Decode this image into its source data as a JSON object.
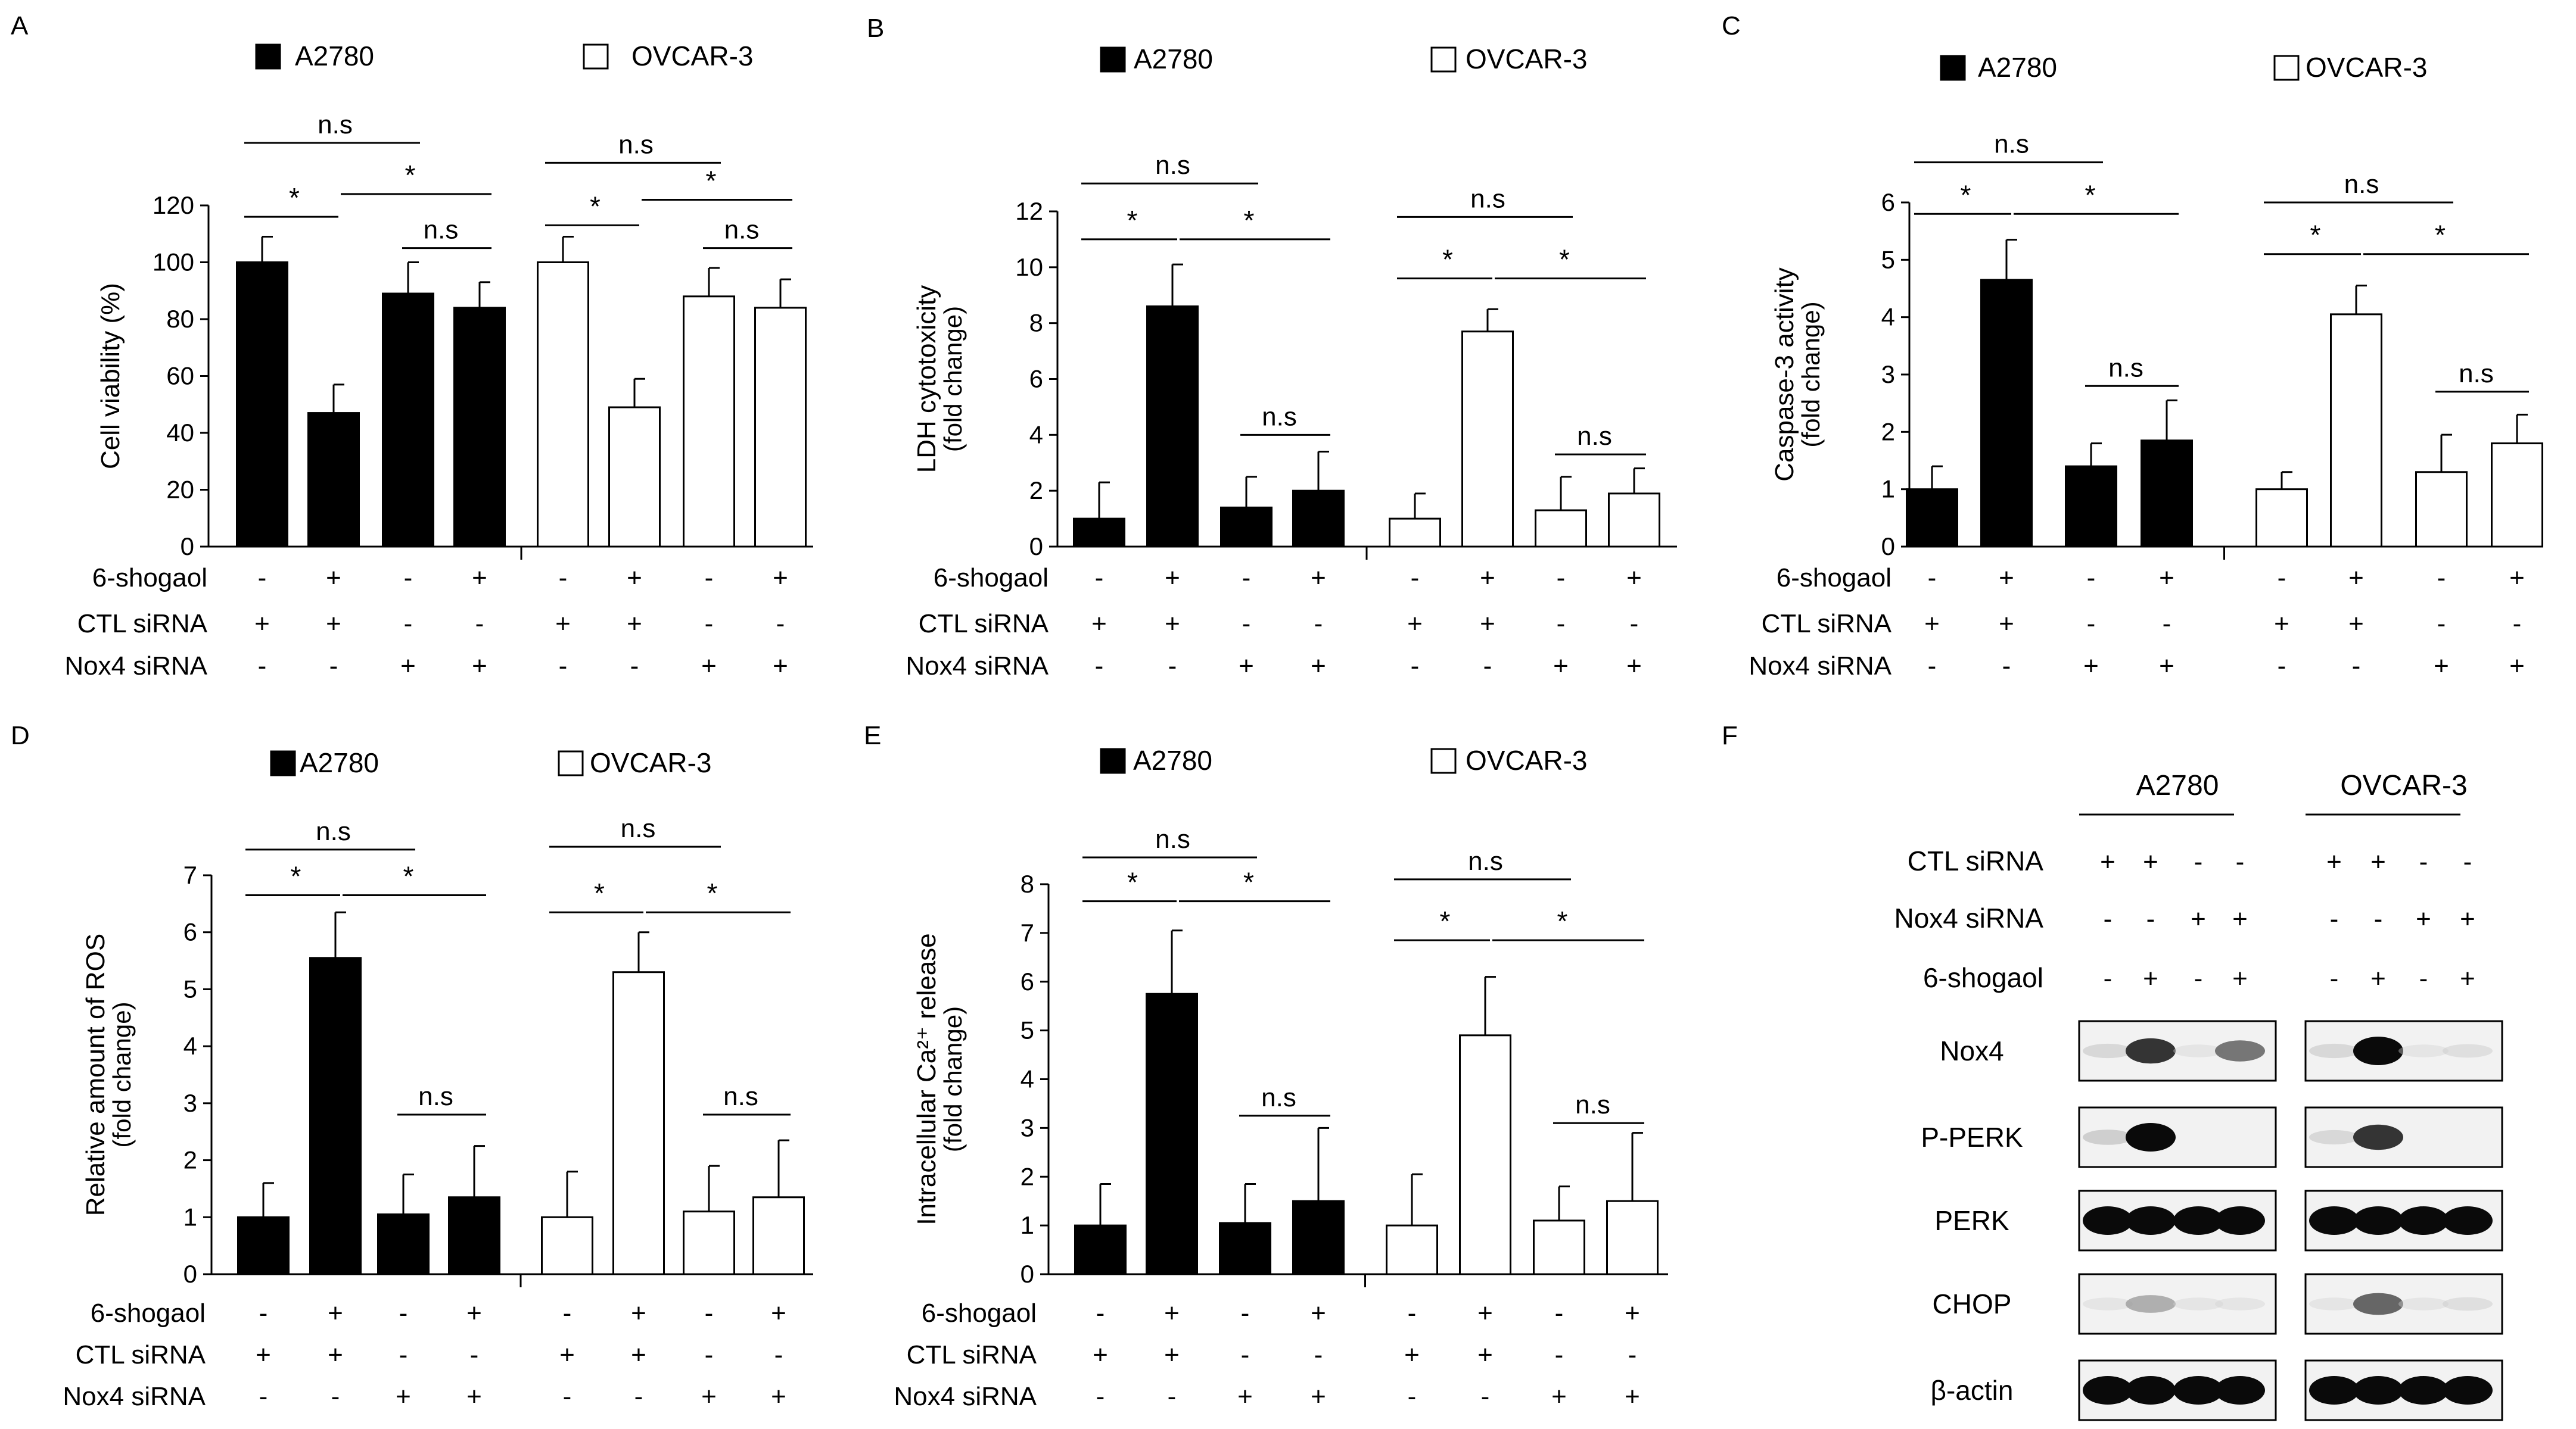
{
  "treatment_rows": [
    {
      "label": "6-shogaol",
      "signs": [
        "-",
        "+",
        "-",
        "+"
      ]
    },
    {
      "label": "CTL siRNA",
      "signs": [
        "+",
        "+",
        "-",
        "-"
      ]
    },
    {
      "label": "Nox4 siRNA",
      "signs": [
        "-",
        "-",
        "+",
        "+"
      ]
    }
  ],
  "legend": {
    "a2780": "A2780",
    "ovcar3": "OVCAR-3"
  },
  "colors": {
    "a2780_fill": "#000000",
    "ovcar3_fill": "#ffffff",
    "axis": "#000000"
  },
  "chart_data": [
    {
      "panel": "A",
      "type": "bar",
      "ylabel": "Cell viability (%)",
      "ylabel2": "",
      "ylim": [
        0,
        120
      ],
      "yticks": [
        0,
        20,
        40,
        60,
        80,
        100,
        120
      ],
      "series": [
        {
          "name": "A2780",
          "values": [
            100,
            47,
            89,
            84
          ],
          "errors": [
            9,
            10,
            11,
            9
          ]
        },
        {
          "name": "OVCAR-3",
          "values": [
            100,
            49,
            88,
            84
          ],
          "errors": [
            9,
            10,
            10,
            10
          ]
        }
      ],
      "annotations": [
        {
          "group": 0,
          "from": 0,
          "to": 2,
          "text": "n.s",
          "y": 142
        },
        {
          "group": 0,
          "from": 0,
          "to": 1,
          "text": "*",
          "y": 116
        },
        {
          "group": 0,
          "from": 1,
          "to": 3,
          "text": "*",
          "y": 124
        },
        {
          "group": 0,
          "from": 2,
          "to": 3,
          "text": "n.s",
          "y": 105
        },
        {
          "group": 1,
          "from": 0,
          "to": 2,
          "text": "n.s",
          "y": 135
        },
        {
          "group": 1,
          "from": 0,
          "to": 1,
          "text": "*",
          "y": 113
        },
        {
          "group": 1,
          "from": 1,
          "to": 3,
          "text": "*",
          "y": 122
        },
        {
          "group": 1,
          "from": 2,
          "to": 3,
          "text": "n.s",
          "y": 105
        }
      ]
    },
    {
      "panel": "B",
      "type": "bar",
      "ylabel": "LDH cytotoxicity",
      "ylabel2": "(fold change)",
      "ylim": [
        0,
        12
      ],
      "yticks": [
        0,
        2,
        4,
        6,
        8,
        10,
        12
      ],
      "series": [
        {
          "name": "A2780",
          "values": [
            1.0,
            8.6,
            1.4,
            2.0
          ],
          "errors": [
            1.3,
            1.5,
            1.1,
            1.4
          ]
        },
        {
          "name": "OVCAR-3",
          "values": [
            1.0,
            7.7,
            1.3,
            1.9
          ],
          "errors": [
            0.9,
            0.8,
            1.2,
            0.9
          ]
        }
      ],
      "annotations": [
        {
          "group": 0,
          "from": 0,
          "to": 2,
          "text": "n.s",
          "y": 13.0
        },
        {
          "group": 0,
          "from": 0,
          "to": 1,
          "text": "*",
          "y": 11.0
        },
        {
          "group": 0,
          "from": 1,
          "to": 3,
          "text": "*",
          "y": 11.0
        },
        {
          "group": 0,
          "from": 2,
          "to": 3,
          "text": "n.s",
          "y": 4.0
        },
        {
          "group": 1,
          "from": 0,
          "to": 2,
          "text": "n.s",
          "y": 11.8
        },
        {
          "group": 1,
          "from": 0,
          "to": 1,
          "text": "*",
          "y": 9.6
        },
        {
          "group": 1,
          "from": 1,
          "to": 3,
          "text": "*",
          "y": 9.6
        },
        {
          "group": 1,
          "from": 2,
          "to": 3,
          "text": "n.s",
          "y": 3.3
        }
      ]
    },
    {
      "panel": "C",
      "type": "bar",
      "ylabel": "Caspase-3 activity",
      "ylabel2": "(fold change)",
      "ylim": [
        0,
        6
      ],
      "yticks": [
        0,
        1,
        2,
        3,
        4,
        5,
        6
      ],
      "series": [
        {
          "name": "A2780",
          "values": [
            1.0,
            4.65,
            1.4,
            1.85
          ],
          "errors": [
            0.4,
            0.7,
            0.4,
            0.7
          ]
        },
        {
          "name": "OVCAR-3",
          "values": [
            1.0,
            4.05,
            1.3,
            1.8
          ],
          "errors": [
            0.3,
            0.5,
            0.65,
            0.5
          ]
        }
      ],
      "annotations": [
        {
          "group": 0,
          "from": 0,
          "to": 2,
          "text": "n.s",
          "y": 6.7
        },
        {
          "group": 0,
          "from": 0,
          "to": 1,
          "text": "*",
          "y": 5.8
        },
        {
          "group": 0,
          "from": 1,
          "to": 3,
          "text": "*",
          "y": 5.8
        },
        {
          "group": 0,
          "from": 2,
          "to": 3,
          "text": "n.s",
          "y": 2.8
        },
        {
          "group": 1,
          "from": 0,
          "to": 2,
          "text": "n.s",
          "y": 6.0
        },
        {
          "group": 1,
          "from": 0,
          "to": 1,
          "text": "*",
          "y": 5.1
        },
        {
          "group": 1,
          "from": 1,
          "to": 3,
          "text": "*",
          "y": 5.1
        },
        {
          "group": 1,
          "from": 2,
          "to": 3,
          "text": "n.s",
          "y": 2.7
        }
      ]
    },
    {
      "panel": "D",
      "type": "bar",
      "ylabel": "Relative amount of ROS",
      "ylabel2": "(fold change)",
      "ylim": [
        0,
        7
      ],
      "yticks": [
        0,
        1,
        2,
        3,
        4,
        5,
        6,
        7
      ],
      "series": [
        {
          "name": "A2780",
          "values": [
            1.0,
            5.55,
            1.05,
            1.35
          ],
          "errors": [
            0.6,
            0.8,
            0.7,
            0.9
          ]
        },
        {
          "name": "OVCAR-3",
          "values": [
            1.0,
            5.3,
            1.1,
            1.35
          ],
          "errors": [
            0.8,
            0.7,
            0.8,
            1.0
          ]
        }
      ],
      "annotations": [
        {
          "group": 0,
          "from": 0,
          "to": 2,
          "text": "n.s",
          "y": 7.45
        },
        {
          "group": 0,
          "from": 0,
          "to": 1,
          "text": "*",
          "y": 6.65
        },
        {
          "group": 0,
          "from": 1,
          "to": 3,
          "text": "*",
          "y": 6.65
        },
        {
          "group": 0,
          "from": 2,
          "to": 3,
          "text": "n.s",
          "y": 2.8
        },
        {
          "group": 1,
          "from": 0,
          "to": 2,
          "text": "n.s",
          "y": 7.5
        },
        {
          "group": 1,
          "from": 0,
          "to": 1,
          "text": "*",
          "y": 6.35
        },
        {
          "group": 1,
          "from": 1,
          "to": 3,
          "text": "*",
          "y": 6.35
        },
        {
          "group": 1,
          "from": 2,
          "to": 3,
          "text": "n.s",
          "y": 2.8
        }
      ]
    },
    {
      "panel": "E",
      "type": "bar",
      "ylabel": "Intracellular Ca²⁺ release",
      "ylabel2": "(fold change)",
      "ylim": [
        0,
        8
      ],
      "yticks": [
        0,
        1,
        2,
        3,
        4,
        5,
        6,
        7,
        8
      ],
      "series": [
        {
          "name": "A2780",
          "values": [
            1.0,
            5.75,
            1.05,
            1.5
          ],
          "errors": [
            0.85,
            1.3,
            0.8,
            1.5
          ]
        },
        {
          "name": "OVCAR-3",
          "values": [
            1.0,
            4.9,
            1.1,
            1.5
          ],
          "errors": [
            1.05,
            1.2,
            0.7,
            1.4
          ]
        }
      ],
      "annotations": [
        {
          "group": 0,
          "from": 0,
          "to": 2,
          "text": "n.s",
          "y": 8.55
        },
        {
          "group": 0,
          "from": 0,
          "to": 1,
          "text": "*",
          "y": 7.65
        },
        {
          "group": 0,
          "from": 1,
          "to": 3,
          "text": "*",
          "y": 7.65
        },
        {
          "group": 0,
          "from": 2,
          "to": 3,
          "text": "n.s",
          "y": 3.25
        },
        {
          "group": 1,
          "from": 0,
          "to": 2,
          "text": "n.s",
          "y": 8.1
        },
        {
          "group": 1,
          "from": 0,
          "to": 1,
          "text": "*",
          "y": 6.85
        },
        {
          "group": 1,
          "from": 1,
          "to": 3,
          "text": "*",
          "y": 6.85
        },
        {
          "group": 1,
          "from": 2,
          "to": 3,
          "text": "n.s",
          "y": 3.1
        }
      ]
    }
  ],
  "western": {
    "panel": "F",
    "groups": [
      "A2780",
      "OVCAR-3"
    ],
    "rows": [
      {
        "label": "CTL siRNA",
        "signs": [
          "+",
          "+",
          "-",
          "-"
        ]
      },
      {
        "label": "Nox4 siRNA",
        "signs": [
          "-",
          "-",
          "+",
          "+"
        ]
      },
      {
        "label": "6-shogaol",
        "signs": [
          "-",
          "+",
          "-",
          "+"
        ]
      }
    ],
    "blots": [
      {
        "label": "Nox4",
        "intensity": [
          [
            0.15,
            0.8,
            0.05,
            0.55
          ],
          [
            0.15,
            1.0,
            0.05,
            0.1
          ]
        ]
      },
      {
        "label": "P-PERK",
        "intensity": [
          [
            0.2,
            1.0,
            0.0,
            0.0
          ],
          [
            0.15,
            0.8,
            0.0,
            0.0
          ]
        ]
      },
      {
        "label": "PERK",
        "intensity": [
          [
            1.0,
            1.0,
            1.0,
            1.0
          ],
          [
            1.0,
            1.0,
            1.0,
            1.0
          ]
        ]
      },
      {
        "label": "CHOP",
        "intensity": [
          [
            0.05,
            0.35,
            0.05,
            0.05
          ],
          [
            0.05,
            0.6,
            0.05,
            0.1
          ]
        ]
      },
      {
        "label": "β-actin",
        "intensity": [
          [
            1.0,
            1.0,
            1.0,
            1.0
          ],
          [
            1.0,
            1.0,
            1.0,
            1.0
          ]
        ]
      }
    ]
  }
}
